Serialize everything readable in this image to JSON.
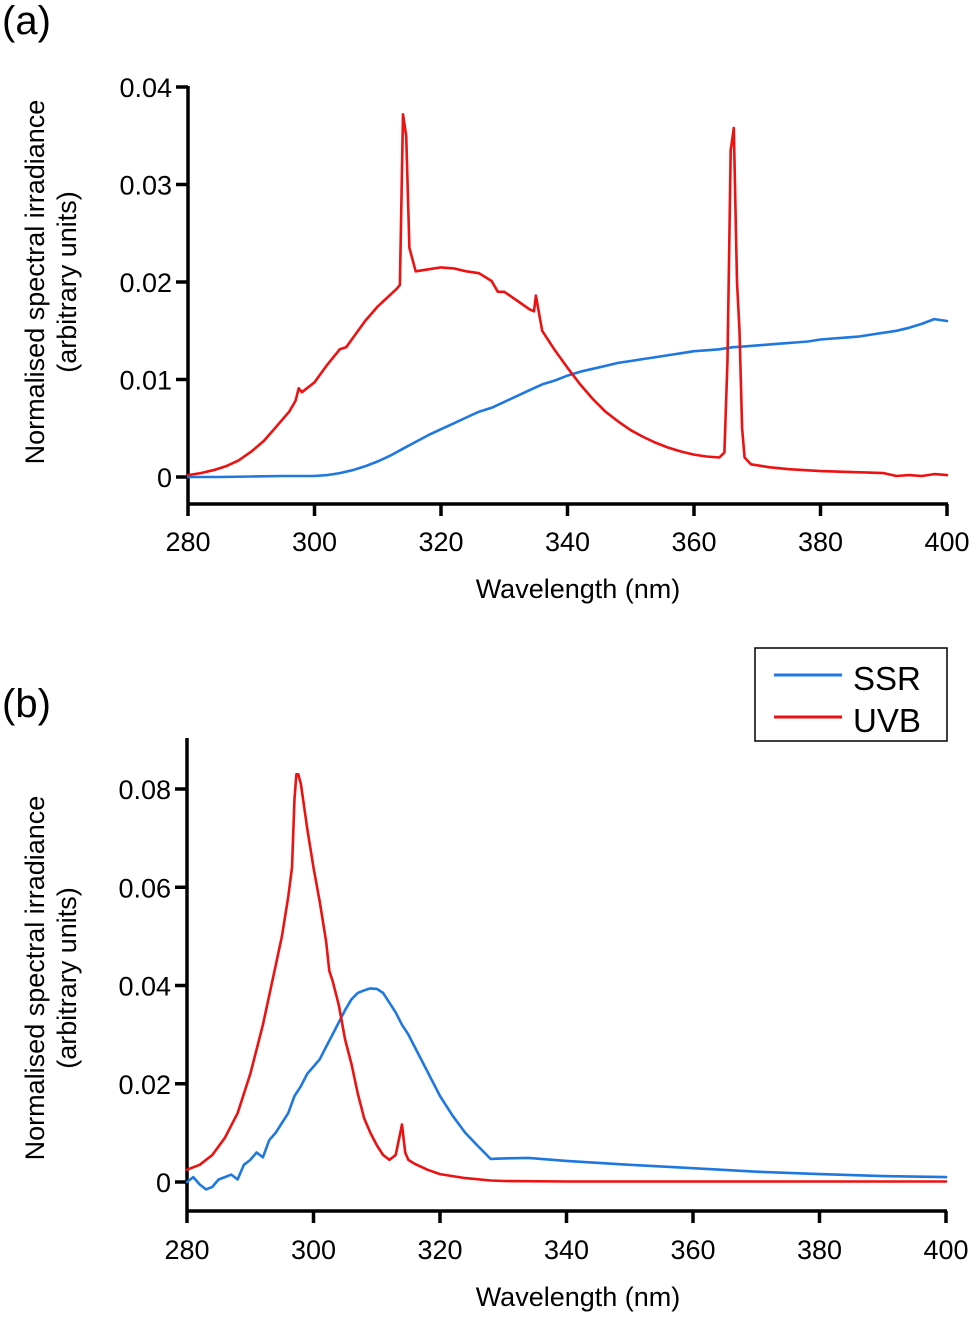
{
  "chart_data": [
    {
      "panel_label": "(a)",
      "type": "line",
      "title": "",
      "xlabel": "Wavelength (nm)",
      "ylabel_line1": "Normalised spectral irradiance",
      "ylabel_line2": "(arbitrary units)",
      "xlim": [
        280,
        400
      ],
      "ylim": [
        -0.003,
        0.04
      ],
      "xticks": [
        280,
        300,
        320,
        340,
        360,
        380,
        400
      ],
      "xtick_labels": [
        "280",
        "300",
        "320",
        "340",
        "360",
        "380",
        "400"
      ],
      "yticks": [
        0,
        0.01,
        0.02,
        0.03,
        0.04
      ],
      "ytick_labels": [
        "0",
        "0.01",
        "0.02",
        "0.03",
        "0.04"
      ],
      "grid": false,
      "legend": null,
      "series": [
        {
          "name": "SSR",
          "color": "#1f78e0",
          "x": [
            280,
            285,
            290,
            295,
            300,
            302,
            304,
            306,
            308,
            310,
            312,
            314,
            316,
            318,
            320,
            322,
            324,
            326,
            328,
            330,
            332,
            334,
            336,
            338,
            340,
            342,
            344,
            346,
            348,
            350,
            352,
            354,
            356,
            358,
            360,
            362,
            364,
            366,
            368,
            370,
            372,
            374,
            376,
            378,
            380,
            382,
            384,
            386,
            388,
            390,
            392,
            394,
            396,
            398,
            400
          ],
          "y": [
            0,
            0,
            5e-05,
            0.0001,
            0.0001,
            0.0002,
            0.0004,
            0.0007,
            0.0011,
            0.0016,
            0.0022,
            0.0029,
            0.0036,
            0.0043,
            0.0049,
            0.0055,
            0.0061,
            0.0067,
            0.0071,
            0.0077,
            0.0083,
            0.0089,
            0.0095,
            0.0099,
            0.0104,
            0.0108,
            0.0111,
            0.0114,
            0.0117,
            0.0119,
            0.0121,
            0.0123,
            0.0125,
            0.0127,
            0.0129,
            0.013,
            0.0131,
            0.0133,
            0.0134,
            0.0135,
            0.0136,
            0.0137,
            0.0138,
            0.0139,
            0.0141,
            0.0142,
            0.0143,
            0.0144,
            0.0146,
            0.0148,
            0.015,
            0.0153,
            0.0157,
            0.0162,
            0.016
          ]
        },
        {
          "name": "UVB",
          "color": "#ee1111",
          "x": [
            280,
            282,
            284,
            286,
            288,
            290,
            292,
            294,
            296,
            297,
            297.5,
            298,
            300,
            302,
            304,
            305,
            306,
            308,
            310,
            312,
            313,
            313.5,
            314,
            314.5,
            315,
            316,
            318,
            320,
            322,
            324,
            326,
            328,
            329,
            330,
            332,
            334,
            334.7,
            335,
            336,
            338,
            340,
            342,
            344,
            346,
            348,
            350,
            352,
            354,
            356,
            358,
            360,
            362,
            364,
            364.8,
            365.3,
            365.8,
            366.3,
            366.8,
            367.2,
            367.6,
            368,
            369,
            370,
            372,
            375,
            380,
            385,
            390,
            392,
            394,
            396,
            398,
            400
          ],
          "y": [
            0.0002,
            0.0004,
            0.0007,
            0.0011,
            0.0017,
            0.0026,
            0.0037,
            0.0052,
            0.0067,
            0.0078,
            0.0091,
            0.0087,
            0.0097,
            0.0115,
            0.0131,
            0.0133,
            0.0142,
            0.016,
            0.0175,
            0.0187,
            0.0193,
            0.0197,
            0.0372,
            0.035,
            0.0235,
            0.0211,
            0.0213,
            0.0215,
            0.0214,
            0.0211,
            0.0209,
            0.0201,
            0.019,
            0.019,
            0.0181,
            0.0172,
            0.017,
            0.0186,
            0.015,
            0.013,
            0.0112,
            0.0095,
            0.008,
            0.0067,
            0.0057,
            0.0048,
            0.0041,
            0.0035,
            0.003,
            0.0026,
            0.0023,
            0.0021,
            0.002,
            0.0025,
            0.012,
            0.0335,
            0.0358,
            0.02,
            0.015,
            0.005,
            0.002,
            0.0013,
            0.0012,
            0.001,
            0.0008,
            0.0006,
            0.0005,
            0.0004,
            0.0001,
            0.0002,
            0.0001,
            0.0003,
            0.0002
          ]
        }
      ]
    },
    {
      "panel_label": "(b)",
      "type": "line",
      "title": "",
      "xlabel": "Wavelength (nm)",
      "ylabel_line1": "Normalised spectral irradiance",
      "ylabel_line2": "(arbitrary units)",
      "xlim": [
        280,
        400
      ],
      "ylim": [
        -0.005,
        0.09
      ],
      "xticks": [
        280,
        300,
        320,
        340,
        360,
        380,
        400
      ],
      "xtick_labels": [
        "280",
        "300",
        "320",
        "340",
        "360",
        "380",
        "400"
      ],
      "yticks": [
        0,
        0.02,
        0.04,
        0.06,
        0.08
      ],
      "ytick_labels": [
        "0",
        "0.02",
        "0.04",
        "0.06",
        "0.08"
      ],
      "grid": false,
      "legend": {
        "placement": "top-right",
        "entries": [
          {
            "label": "SSR",
            "color": "#1f78e0"
          },
          {
            "label": "UVB",
            "color": "#ee1111"
          }
        ]
      },
      "series": [
        {
          "name": "SSR",
          "color": "#1f78e0",
          "x": [
            280,
            281,
            282,
            283,
            284,
            285,
            286,
            287,
            288,
            289,
            290,
            291,
            292,
            293,
            294,
            295,
            296,
            297,
            298,
            299,
            300,
            301,
            302,
            303,
            304,
            305,
            306,
            307,
            308,
            309,
            310,
            311,
            312,
            313,
            314,
            315,
            316,
            318,
            320,
            322,
            324,
            326,
            328,
            330,
            334,
            340,
            350,
            360,
            370,
            380,
            390,
            400
          ],
          "y": [
            0,
            0.001,
            -0.0005,
            -0.0015,
            -0.001,
            0.0005,
            0.001,
            0.0015,
            0.0005,
            0.0035,
            0.0045,
            0.006,
            0.005,
            0.0085,
            0.01,
            0.012,
            0.014,
            0.0175,
            0.0195,
            0.022,
            0.0235,
            0.025,
            0.0275,
            0.03,
            0.0325,
            0.035,
            0.0372,
            0.0385,
            0.039,
            0.0394,
            0.0393,
            0.0385,
            0.0365,
            0.0345,
            0.032,
            0.03,
            0.0275,
            0.0225,
            0.0175,
            0.0135,
            0.01,
            0.0073,
            0.0047,
            0.0048,
            0.0049,
            0.0043,
            0.0035,
            0.0028,
            0.0021,
            0.0016,
            0.0012,
            0.001
          ]
        },
        {
          "name": "UVB",
          "color": "#ee1111",
          "x": [
            280,
            282,
            284,
            286,
            288,
            290,
            291,
            292,
            294,
            295,
            296,
            296.6,
            297,
            297.3,
            297.6,
            298,
            299,
            300,
            301,
            302,
            302.5,
            303,
            304,
            305,
            306,
            307,
            308,
            309,
            310,
            311,
            312,
            313,
            314,
            314.5,
            315,
            316,
            318,
            320,
            324,
            328,
            330,
            340,
            360,
            380,
            400
          ],
          "y": [
            0.0025,
            0.0035,
            0.0055,
            0.009,
            0.014,
            0.022,
            0.027,
            0.032,
            0.044,
            0.05,
            0.058,
            0.064,
            0.078,
            0.083,
            0.083,
            0.081,
            0.072,
            0.064,
            0.057,
            0.049,
            0.043,
            0.041,
            0.036,
            0.029,
            0.024,
            0.018,
            0.013,
            0.01,
            0.0075,
            0.0055,
            0.0045,
            0.0055,
            0.0117,
            0.006,
            0.0045,
            0.0037,
            0.0025,
            0.0016,
            0.0008,
            0.0003,
            0.0002,
            0.0001,
            0.0001,
            0.0001,
            0.0001
          ]
        }
      ]
    }
  ]
}
